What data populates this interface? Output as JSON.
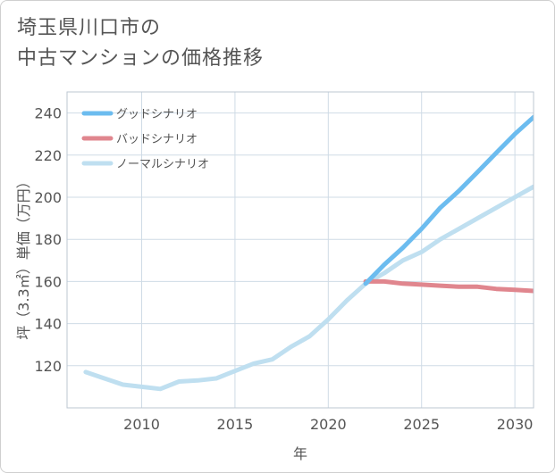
{
  "page": {
    "title_line1": "埼玉県川口市の",
    "title_line2": "中古マンションの価格推移"
  },
  "colors": {
    "good": "#6cbcef",
    "bad": "#e0868e",
    "normal": "#bfdff0",
    "grid": "#cfdbe6",
    "text": "#555555",
    "plot_border": "#bcc7d2"
  },
  "chart_data": {
    "type": "line",
    "title": "埼玉県川口市の中古マンションの価格推移",
    "xlabel": "年",
    "ylabel": "坪（3.3㎡）単価（万円）",
    "xlim": [
      2006,
      2031
    ],
    "ylim": [
      100,
      250
    ],
    "xticks": [
      2010,
      2015,
      2020,
      2025,
      2030
    ],
    "yticks": [
      120,
      140,
      160,
      180,
      200,
      220,
      240
    ],
    "grid": true,
    "legend_position": "top-left",
    "series": [
      {
        "name": "グッドシナリオ",
        "color_key": "good",
        "points": [
          [
            2022,
            159
          ],
          [
            2023,
            168
          ],
          [
            2024,
            176
          ],
          [
            2025,
            185
          ],
          [
            2026,
            195
          ],
          [
            2027,
            203
          ],
          [
            2028,
            212
          ],
          [
            2029,
            221
          ],
          [
            2030,
            230
          ],
          [
            2031,
            238
          ]
        ]
      },
      {
        "name": "バッドシナリオ",
        "color_key": "bad",
        "points": [
          [
            2022,
            160
          ],
          [
            2023,
            160
          ],
          [
            2024,
            159
          ],
          [
            2025,
            158.5
          ],
          [
            2026,
            158
          ],
          [
            2027,
            157.5
          ],
          [
            2028,
            157.5
          ],
          [
            2029,
            156.5
          ],
          [
            2030,
            156
          ],
          [
            2031,
            155.5
          ]
        ]
      },
      {
        "name": "ノーマルシナリオ",
        "color_key": "normal",
        "points": [
          [
            2007,
            117
          ],
          [
            2008,
            114
          ],
          [
            2009,
            111
          ],
          [
            2010,
            110
          ],
          [
            2011,
            109
          ],
          [
            2012,
            112.5
          ],
          [
            2013,
            113
          ],
          [
            2014,
            114
          ],
          [
            2015,
            117.5
          ],
          [
            2016,
            121
          ],
          [
            2017,
            123
          ],
          [
            2018,
            129
          ],
          [
            2019,
            134
          ],
          [
            2020,
            142
          ],
          [
            2021,
            151
          ],
          [
            2022,
            159
          ],
          [
            2023,
            164
          ],
          [
            2024,
            170
          ],
          [
            2025,
            174
          ],
          [
            2026,
            180
          ],
          [
            2027,
            185
          ],
          [
            2028,
            190
          ],
          [
            2029,
            195
          ],
          [
            2030,
            200
          ],
          [
            2031,
            205
          ]
        ]
      }
    ]
  }
}
